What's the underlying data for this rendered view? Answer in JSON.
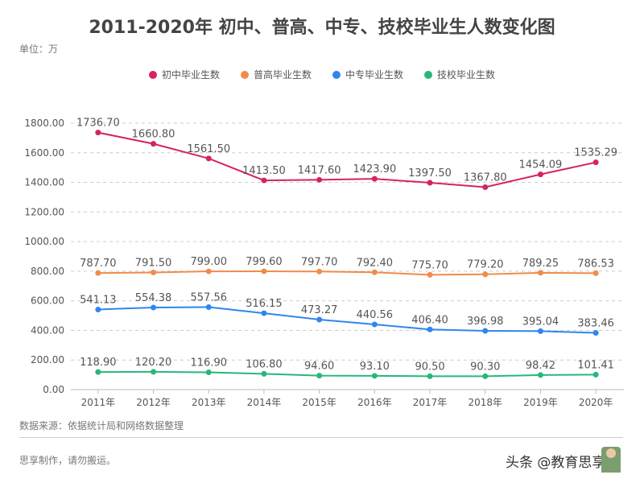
{
  "chart_data": {
    "type": "line",
    "title": "2011-2020年 初中、普高、中专、技校毕业生人数变化图",
    "unit_label": "单位：万",
    "categories": [
      "2011年",
      "2012年",
      "2013年",
      "2014年",
      "2015年",
      "2016年",
      "2017年",
      "2018年",
      "2019年",
      "2020年"
    ],
    "ylim": [
      0,
      1800
    ],
    "yticks": [
      "0.00",
      "200.00",
      "400.00",
      "600.00",
      "800.00",
      "1000.00",
      "1200.00",
      "1400.00",
      "1600.00",
      "1800.00"
    ],
    "grid": true,
    "legend_position": "top-center",
    "series": [
      {
        "name": "初中毕业生数",
        "color": "#d6245a",
        "values": [
          1736.7,
          1660.8,
          1561.5,
          1413.5,
          1417.6,
          1423.9,
          1397.5,
          1367.8,
          1454.09,
          1535.29
        ]
      },
      {
        "name": "普高毕业生数",
        "color": "#f08c4a",
        "values": [
          787.7,
          791.5,
          799.0,
          799.6,
          797.7,
          792.4,
          775.7,
          779.2,
          789.25,
          786.53
        ]
      },
      {
        "name": "中专毕业生数",
        "color": "#2f86ee",
        "values": [
          541.13,
          554.38,
          557.56,
          516.15,
          473.27,
          440.56,
          406.4,
          396.98,
          395.04,
          383.46
        ]
      },
      {
        "name": "技校毕业生数",
        "color": "#27b77a",
        "values": [
          118.9,
          120.2,
          116.9,
          106.8,
          94.6,
          93.1,
          90.5,
          90.3,
          98.42,
          101.41
        ]
      }
    ]
  },
  "footer": {
    "source": "数据来源：依据统计局和网络数据整理",
    "credit": "思享制作，请勿搬运。",
    "brand": "头条 @教育思享"
  }
}
